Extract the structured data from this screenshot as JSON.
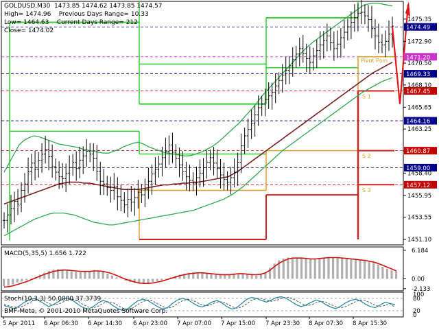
{
  "header": {
    "symbol": "GOLDUSD,M30",
    "ohlc": "1473.85 1474.62 1473.85 1474.57",
    "high": "High= 1474.96",
    "low": "Low= 1464.63",
    "close": "Close= 1474.02",
    "prev_range": "Previous Days Range= 10.33",
    "curr_range": "Current Days Range= 212"
  },
  "copyright": "BMF-Meta, © 2001-2010 MetaQuotes Software Corp.",
  "colors": {
    "price_bars": "#000000",
    "envelope_bands": "#2fa84f",
    "moving_average": "#7a1f1f",
    "high_level": "#33cc33",
    "support_lines": "#cc2222",
    "pivot_lines": "#e0a020",
    "macd_histogram": "#b0b0b0",
    "macd_signal": "#cc1111",
    "stoch_main": "#2a8aa0",
    "stoch_signal": "#555555",
    "label_blue": "#00008b",
    "label_red": "#c40000",
    "label_magenta": "#cc33cc"
  },
  "chart_data": [
    {
      "type": "line",
      "panel": "price",
      "ylim": [
        1450.5,
        1477.3
      ],
      "y_ticks": [
        1475.35,
        1472.9,
        1470.5,
        1468.1,
        1465.65,
        1463.25,
        1460.85,
        1458.4,
        1455.95,
        1453.55,
        1451.1
      ],
      "y_tick_labels": [
        "1475.35",
        "1472.90",
        "1470.50",
        "1468.10",
        "1465.65",
        "1463.25",
        "1460.85",
        "1458.40",
        "1455.95",
        "1453.55",
        "1451.10"
      ],
      "x_labels": [
        "5 Apr 2011",
        "6 Apr 06:30",
        "6 Apr 14:30",
        "6 Apr 23:00",
        "7 Apr 07:00",
        "7 Apr 15:00",
        "7 Apr 23:30",
        "8 Apr 07:30",
        "8 Apr 15:30"
      ],
      "price_labels": [
        {
          "value": 1474.49,
          "text": "1474.49",
          "style": "blue"
        },
        {
          "value": 1471.2,
          "text": "1471.20",
          "style": "magenta"
        },
        {
          "value": 1469.33,
          "text": "1469.33",
          "style": "blue"
        },
        {
          "value": 1467.45,
          "text": "1467.45",
          "style": "red"
        },
        {
          "value": 1464.16,
          "text": "1464.16",
          "style": "blue"
        },
        {
          "value": 1460.87,
          "text": "1460.87",
          "style": "red"
        },
        {
          "value": 1459.0,
          "text": "1459.00",
          "style": "blue"
        },
        {
          "value": 1457.12,
          "text": "1457.12",
          "style": "red"
        }
      ],
      "level_annotations": [
        "Pivot Poin",
        "S 1",
        "S 2",
        "S 3"
      ],
      "close_series": [
        1453.2,
        1453.8,
        1454.5,
        1455.3,
        1455.0,
        1456.5,
        1457.2,
        1458.6,
        1459.5,
        1458.8,
        1459.8,
        1460.5,
        1461.0,
        1460.2,
        1459.1,
        1458.5,
        1458.0,
        1457.8,
        1458.4,
        1459.0,
        1459.6,
        1458.9,
        1459.8,
        1460.3,
        1460.8,
        1460.5,
        1460.0,
        1458.6,
        1457.5,
        1457.2,
        1456.8,
        1456.5,
        1456.9,
        1455.8,
        1455.4,
        1454.9,
        1455.5,
        1455.2,
        1455.7,
        1456.3,
        1456.0,
        1456.6,
        1457.5,
        1458.3,
        1458.8,
        1459.4,
        1460.1,
        1460.8,
        1461.5,
        1460.7,
        1460.0,
        1459.3,
        1458.6,
        1458.0,
        1457.6,
        1457.3,
        1457.9,
        1458.4,
        1459.0,
        1459.6,
        1460.1,
        1459.5,
        1458.9,
        1458.2,
        1457.7,
        1457.4,
        1457.9,
        1458.5,
        1459.6,
        1461.4,
        1462.5,
        1463.2,
        1463.9,
        1464.8,
        1465.6,
        1466.0,
        1466.5,
        1466.9,
        1467.3,
        1468.0,
        1468.6,
        1469.2,
        1469.7,
        1470.2,
        1470.9,
        1471.5,
        1472.1,
        1471.6,
        1471.0,
        1470.6,
        1471.3,
        1471.9,
        1472.5,
        1473.0,
        1473.5,
        1472.8,
        1472.1,
        1472.6,
        1473.3,
        1473.9,
        1474.5,
        1475.0,
        1475.5,
        1476.0,
        1476.1,
        1475.7,
        1475.3,
        1474.3,
        1473.5,
        1472.8,
        1472.5,
        1472.9,
        1473.7,
        1474.57
      ],
      "ma_series": [
        1455.0,
        1455.2,
        1455.4,
        1455.6,
        1455.8,
        1456.0,
        1456.2,
        1456.4,
        1456.6,
        1456.8,
        1457.0,
        1457.2,
        1457.3,
        1457.4,
        1457.4,
        1457.4,
        1457.3,
        1457.3,
        1457.2,
        1457.1,
        1457.0,
        1456.9,
        1456.8,
        1456.7,
        1456.6,
        1456.6,
        1456.6,
        1456.6,
        1456.7,
        1456.8,
        1456.9,
        1457.0,
        1457.1,
        1457.1,
        1457.2,
        1457.2,
        1457.3,
        1457.3,
        1457.4,
        1457.4,
        1457.5,
        1457.6,
        1457.7,
        1457.8,
        1457.9,
        1458.0,
        1458.3,
        1458.6,
        1459.0,
        1459.4,
        1459.8,
        1460.2,
        1460.6,
        1461.0,
        1461.4,
        1461.8,
        1462.2,
        1462.6,
        1463.0,
        1463.4,
        1463.8,
        1464.2,
        1464.6,
        1465.0,
        1465.4,
        1465.8,
        1466.2,
        1466.6,
        1467.0,
        1467.4,
        1467.8,
        1468.2,
        1468.6,
        1469.0,
        1469.4,
        1469.7,
        1470.0,
        1470.3,
        1470.6
      ],
      "upper_band_series": [
        1458.5,
        1459.5,
        1460.5,
        1461.5,
        1462.0,
        1462.3,
        1462.5,
        1462.4,
        1462.2,
        1462.0,
        1461.8,
        1461.6,
        1461.5,
        1461.4,
        1461.3,
        1461.2,
        1461.0,
        1460.9,
        1460.8,
        1460.7,
        1460.6,
        1460.6,
        1460.8,
        1461.0,
        1461.3,
        1461.5,
        1461.7,
        1461.8,
        1461.6,
        1461.3,
        1461.1,
        1460.9,
        1460.7,
        1460.6,
        1460.5,
        1460.4,
        1460.3,
        1460.3,
        1460.4,
        1460.6,
        1460.8,
        1461.1,
        1461.4,
        1461.8,
        1462.3,
        1462.8,
        1463.3,
        1463.8,
        1464.4,
        1465.0,
        1465.6,
        1466.3,
        1467.0,
        1467.6,
        1468.2,
        1468.8,
        1469.4,
        1470.0,
        1470.6,
        1471.2,
        1471.8,
        1472.3,
        1472.8,
        1473.2,
        1473.6,
        1474.0,
        1474.4,
        1474.8,
        1475.2,
        1475.6,
        1476.0,
        1476.4,
        1476.8,
        1477.0,
        1477.1,
        1477.1,
        1477.0,
        1476.9,
        1476.8
      ],
      "lower_band_series": [
        1451.5,
        1451.8,
        1452.1,
        1452.4,
        1452.7,
        1453.0,
        1453.3,
        1453.5,
        1453.7,
        1453.9,
        1454.0,
        1454.0,
        1454.0,
        1453.9,
        1453.8,
        1453.6,
        1453.4,
        1453.2,
        1453.0,
        1452.9,
        1452.8,
        1452.7,
        1452.7,
        1452.8,
        1452.9,
        1453.0,
        1453.1,
        1453.2,
        1453.3,
        1453.4,
        1453.5,
        1453.6,
        1453.7,
        1453.8,
        1453.9,
        1454.0,
        1454.1,
        1454.2,
        1454.3,
        1454.5,
        1454.7,
        1454.9,
        1455.1,
        1455.3,
        1455.5,
        1455.8,
        1456.1,
        1456.5,
        1456.9,
        1457.4,
        1457.9,
        1458.4,
        1458.9,
        1459.4,
        1459.9,
        1460.4,
        1460.9,
        1461.3,
        1461.7,
        1462.1,
        1462.5,
        1462.9,
        1463.3,
        1463.7,
        1464.1,
        1464.5,
        1464.9,
        1465.3,
        1465.7,
        1466.1,
        1466.5,
        1466.9,
        1467.3,
        1467.6,
        1467.9,
        1468.2,
        1468.5,
        1468.7,
        1468.9
      ]
    },
    {
      "type": "bar",
      "panel": "macd",
      "title": "MACD(5,35,5) 1.656 1.722",
      "ylim": [
        -2.6,
        6.9
      ],
      "y_tick_labels": [
        "6.184",
        "0.00",
        "-2.133"
      ],
      "y_ticks": [
        6.184,
        0.0,
        -2.133
      ],
      "histogram": [
        -1.6,
        -1.5,
        -1.2,
        -0.8,
        -0.6,
        -0.3,
        0.0,
        0.4,
        0.9,
        1.3,
        1.7,
        2.0,
        2.1,
        2.0,
        1.8,
        1.6,
        1.5,
        1.4,
        1.5,
        1.7,
        1.9,
        1.8,
        1.5,
        1.1,
        0.7,
        0.3,
        -0.1,
        -0.4,
        -0.7,
        -0.9,
        -1.1,
        -1.1,
        -0.9,
        -0.7,
        -0.5,
        -0.3,
        0.0,
        0.3,
        0.6,
        0.9,
        1.1,
        1.3,
        1.4,
        1.4,
        1.3,
        1.2,
        1.0,
        0.9,
        0.8,
        0.9,
        1.0,
        1.1,
        1.2,
        1.1,
        1.0,
        0.8,
        0.7,
        0.9,
        1.4,
        2.4,
        3.3,
        4.0,
        4.4,
        4.6,
        4.6,
        4.5,
        4.4,
        4.3,
        4.3,
        4.4,
        4.5,
        4.6,
        4.7,
        4.6,
        4.5,
        4.4,
        4.3,
        4.2,
        4.1,
        4.0,
        3.9,
        3.7,
        3.4,
        3.1,
        2.6,
        2.2,
        1.8,
        1.6
      ],
      "signal": [
        -1.8,
        -1.7,
        -1.5,
        -1.2,
        -0.9,
        -0.6,
        -0.2,
        0.2,
        0.6,
        1.0,
        1.3,
        1.6,
        1.8,
        1.9,
        1.9,
        1.8,
        1.7,
        1.6,
        1.6,
        1.6,
        1.7,
        1.7,
        1.6,
        1.4,
        1.1,
        0.7,
        0.3,
        -0.1,
        -0.4,
        -0.7,
        -0.9,
        -1.0,
        -1.0,
        -0.9,
        -0.7,
        -0.5,
        -0.2,
        0.1,
        0.4,
        0.7,
        0.9,
        1.1,
        1.2,
        1.3,
        1.3,
        1.2,
        1.1,
        1.0,
        0.9,
        0.9,
        0.9,
        1.0,
        1.1,
        1.1,
        1.0,
        0.9,
        0.9,
        1.0,
        1.3,
        1.9,
        2.7,
        3.4,
        3.9,
        4.3,
        4.5,
        4.5,
        4.5,
        4.4,
        4.3,
        4.3,
        4.4,
        4.5,
        4.6,
        4.6,
        4.6,
        4.5,
        4.4,
        4.3,
        4.2,
        4.1,
        4.0,
        3.8,
        3.6,
        3.3,
        2.9,
        2.5,
        2.1,
        1.7
      ]
    },
    {
      "type": "line",
      "panel": "stochastic",
      "title": "Stoch(10,3,3) 50.0000 37.3739",
      "ylim": [
        0,
        100
      ],
      "y_tick_labels": [
        "100",
        "80",
        "20",
        "0"
      ],
      "y_ticks": [
        100,
        80,
        20,
        0
      ],
      "main": [
        45,
        38,
        30,
        42,
        60,
        72,
        80,
        70,
        55,
        40,
        50,
        65,
        78,
        82,
        68,
        50,
        35,
        28,
        40,
        58,
        70,
        62,
        45,
        30,
        22,
        30,
        50,
        68,
        76,
        70,
        55,
        40,
        28,
        35,
        55,
        72,
        80,
        74,
        60,
        45,
        38,
        48,
        62,
        70,
        58,
        40,
        28,
        35,
        55,
        75,
        85,
        80,
        70,
        62,
        72,
        84,
        88,
        80,
        65,
        50,
        40,
        48,
        60,
        72,
        65,
        50,
        38,
        30,
        42,
        58,
        70,
        76,
        68,
        52,
        40,
        35,
        48,
        62,
        55,
        50
      ],
      "signal": [
        50,
        44,
        38,
        36,
        44,
        58,
        70,
        74,
        68,
        56,
        48,
        52,
        64,
        74,
        76,
        66,
        50,
        38,
        34,
        42,
        56,
        64,
        60,
        46,
        32,
        26,
        34,
        50,
        64,
        72,
        68,
        54,
        40,
        32,
        38,
        54,
        68,
        76,
        72,
        60,
        48,
        44,
        52,
        62,
        64,
        54,
        40,
        32,
        38,
        54,
        70,
        80,
        80,
        72,
        66,
        70,
        80,
        86,
        82,
        70,
        56,
        46,
        48,
        58,
        66,
        62,
        50,
        40,
        34,
        40,
        52,
        64,
        72,
        70,
        58,
        46,
        40,
        46,
        54,
        37
      ]
    }
  ]
}
